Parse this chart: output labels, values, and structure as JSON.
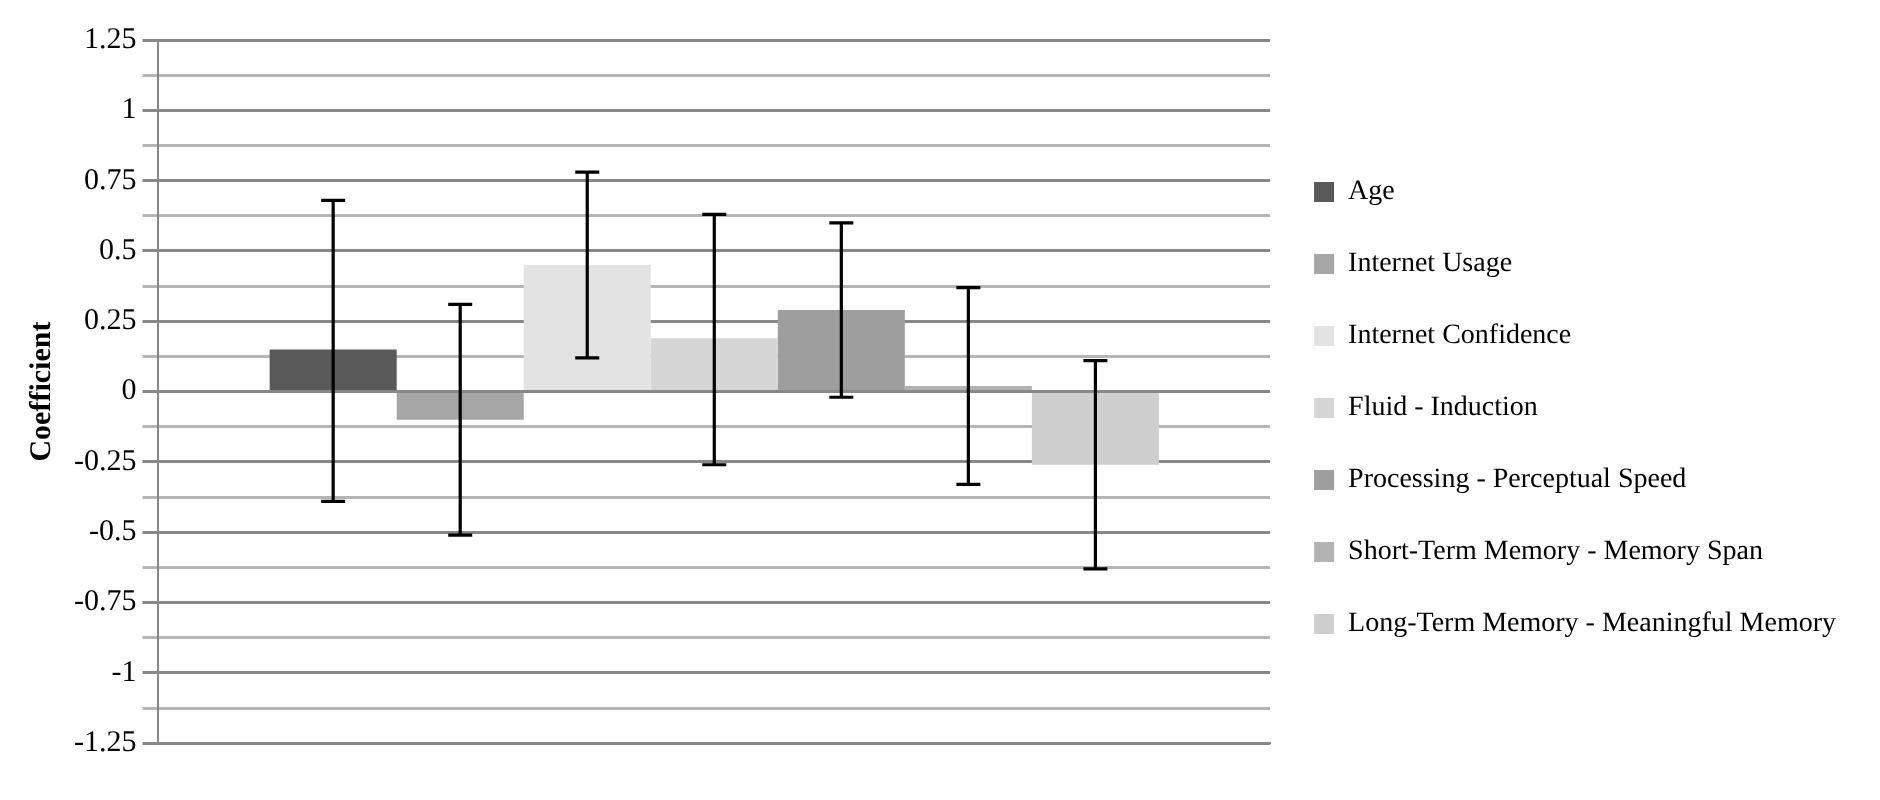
{
  "chart_data": {
    "type": "bar",
    "ylabel": "Coefficient",
    "categories": [
      null
    ],
    "series": [
      {
        "name": "Age",
        "color": "#595959",
        "values": [
          0.15
        ],
        "errors": [
          [
            -0.39,
            0.68
          ]
        ]
      },
      {
        "name": "Internet Usage",
        "color": "#a6a6a6",
        "values": [
          -0.1
        ],
        "errors": [
          [
            -0.51,
            0.31
          ]
        ]
      },
      {
        "name": "Internet Confidence",
        "color": "#e3e3e3",
        "values": [
          0.45
        ],
        "errors": [
          [
            0.12,
            0.78
          ]
        ]
      },
      {
        "name": "Fluid - Induction",
        "color": "#d6d6d6",
        "values": [
          0.19
        ],
        "errors": [
          [
            -0.26,
            0.63
          ]
        ]
      },
      {
        "name": "Processing - Perceptual Speed",
        "color": "#9e9e9e",
        "values": [
          0.29
        ],
        "errors": [
          [
            -0.02,
            0.6
          ]
        ]
      },
      {
        "name": "Short-Term Memory - Memory Span",
        "color": "#b3b3b3",
        "values": [
          0.02
        ],
        "errors": [
          [
            -0.33,
            0.37
          ]
        ]
      },
      {
        "name": "Long-Term Memory - Meaningful Memory",
        "color": "#cfcfcf",
        "values": [
          -0.26
        ],
        "errors": [
          [
            -0.63,
            0.11
          ]
        ]
      }
    ],
    "ylim": [
      -1.25,
      1.25
    ],
    "yticks": [
      -1.25,
      {
        "value": -1.125,
        "label": null
      },
      -1,
      {
        "value": -0.875,
        "label": null
      },
      -0.75,
      {
        "value": -0.625,
        "label": null
      },
      -0.5,
      {
        "value": -0.375,
        "label": null
      },
      -0.25,
      {
        "value": -0.125,
        "label": null
      },
      0,
      {
        "value": 0.125,
        "label": null
      },
      0.25,
      {
        "value": 0.375,
        "label": null
      },
      0.5,
      {
        "value": 0.625,
        "label": null
      },
      0.75,
      {
        "value": 0.875,
        "label": null
      },
      1,
      {
        "value": 1.125,
        "label": null
      },
      1.25
    ],
    "grid": "y",
    "legend": "right"
  }
}
